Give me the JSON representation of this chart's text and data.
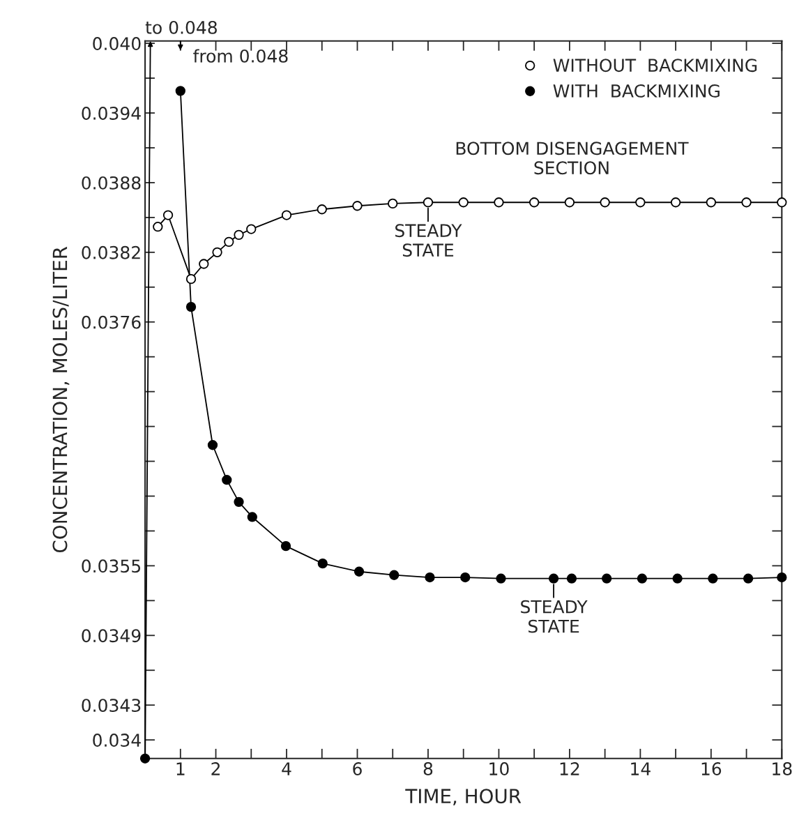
{
  "chart_data": {
    "type": "line",
    "xlabel": "TIME, HOUR",
    "ylabel": "CONCENTRATION, MOLES/LITER",
    "xlim": [
      0,
      18
    ],
    "ylim": [
      0.03384,
      0.04002
    ],
    "xticks": [
      1,
      2,
      {
        "value": 3,
        "label": null
      },
      4,
      {
        "value": 5,
        "label": null
      },
      6,
      {
        "value": 7,
        "label": null
      },
      8,
      {
        "value": 9,
        "label": null
      },
      {
        "value": 10,
        "label": "10"
      },
      {
        "value": 11,
        "label": null
      },
      12,
      {
        "value": 13,
        "label": null
      },
      14,
      {
        "value": 15,
        "label": null
      },
      16,
      {
        "value": 17,
        "label": null
      },
      18
    ],
    "yticks": [
      0.034,
      0.0343,
      {
        "value": 0.0346,
        "label": null
      },
      0.0349,
      {
        "value": 0.0352,
        "label": null
      },
      0.0355,
      {
        "value": 0.0358,
        "label": null
      },
      {
        "value": 0.0361,
        "label": null
      },
      {
        "value": 0.0364,
        "label": null
      },
      {
        "value": 0.0367,
        "label": null
      },
      {
        "value": 0.037,
        "label": null
      },
      {
        "value": 0.0373,
        "label": null
      },
      0.0376,
      {
        "value": 0.0379,
        "label": null
      },
      0.0382,
      {
        "value": 0.0385,
        "label": null
      },
      0.0388,
      {
        "value": 0.0391,
        "label": null
      },
      0.0394,
      {
        "value": 0.0397,
        "label": null
      },
      {
        "value": 0.04,
        "label": "0.040"
      }
    ],
    "grid": false,
    "legend": "top right",
    "marker": "circle",
    "line_style": "solid",
    "series": [
      {
        "name": "WITHOUT  BACKMIXING",
        "color": "#ffffff",
        "x": [
          0.36,
          0.65,
          1.3,
          1.66,
          2.04,
          2.37,
          2.65,
          3.0,
          4.0,
          5.0,
          6.0,
          7.0,
          8.0,
          9.0,
          10.0,
          11.0,
          12.0,
          13.0,
          14.0,
          15.0,
          16.0,
          17.0,
          18.0
        ],
        "values": [
          0.03842,
          0.03852,
          0.03797,
          0.0381,
          0.0382,
          0.03829,
          0.03835,
          0.0384,
          0.03852,
          0.03857,
          0.0386,
          0.03862,
          0.03863,
          0.03863,
          0.03863,
          0.03863,
          0.03863,
          0.03863,
          0.03863,
          0.03863,
          0.03863,
          0.03863,
          0.03863
        ]
      },
      {
        "name": "WITH  BACKMIXING",
        "color": "#000000",
        "x": [
          0,
          0.15,
          1.0,
          1.3,
          1.91,
          2.31,
          2.65,
          3.03,
          3.98,
          5.02,
          6.05,
          7.04,
          8.05,
          9.05,
          10.06,
          11.55,
          12.06,
          13.05,
          14.05,
          15.05,
          16.05,
          17.05,
          18.0
        ],
        "values": [
          0.03384,
          null,
          0.03959,
          0.03773,
          0.03654,
          0.03624,
          0.03605,
          0.03592,
          0.03567,
          0.03552,
          0.03545,
          0.03542,
          0.0354,
          0.0354,
          0.03539,
          0.03539,
          0.03539,
          0.03539,
          0.03539,
          0.03539,
          0.03539,
          0.03539,
          0.0354
        ]
      }
    ],
    "annotations": [
      "to 0.048",
      "from 0.048",
      "BOTTOM DISENGAGEMENT\nSECTION",
      {
        "text": "STEADY\nSTATE",
        "x": 8.0,
        "y": 0.03863
      },
      {
        "text": "STEADY\nSTATE",
        "x": 11.55,
        "y": 0.03539
      }
    ]
  }
}
